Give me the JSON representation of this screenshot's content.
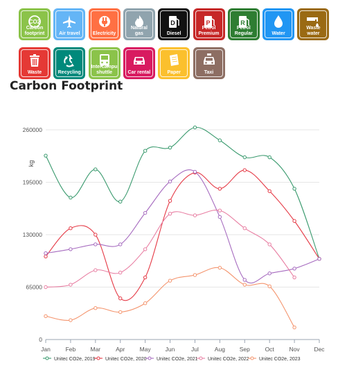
{
  "tiles": [
    {
      "label": "Carbon footprint",
      "icon": "co2-icon",
      "color": "#8bc34a"
    },
    {
      "label": "Air travel",
      "icon": "airplane-icon",
      "color": "#64b5f6"
    },
    {
      "label": "Electricity",
      "icon": "plug-icon",
      "color": "#ff7043"
    },
    {
      "label": "Natural gas",
      "icon": "flame-icon",
      "color": "#90a4ae"
    },
    {
      "label": "Diesel",
      "icon": "diesel-pump-icon",
      "color": "#111111"
    },
    {
      "label": "Petrol Premium",
      "icon": "premium-pump-icon",
      "color": "#c62828"
    },
    {
      "label": "Petrol Regular",
      "icon": "regular-pump-icon",
      "color": "#2e7d32"
    },
    {
      "label": "Water",
      "icon": "water-drop-icon",
      "color": "#2196f3"
    },
    {
      "label": "Waste water",
      "icon": "waste-water-icon",
      "color": "#9a6a13"
    },
    {
      "label": "Waste",
      "icon": "bin-icon",
      "color": "#e53935"
    },
    {
      "label": "Recycling",
      "icon": "recycle-icon",
      "color": "#00897b"
    },
    {
      "label": "Intercampus shuttle",
      "icon": "bus-icon",
      "color": "#8bc34a"
    },
    {
      "label": "Car rental",
      "icon": "car-icon",
      "color": "#d81b60"
    },
    {
      "label": "Paper",
      "icon": "paper-icon",
      "color": "#fbc02d"
    },
    {
      "label": "Taxi",
      "icon": "taxi-icon",
      "color": "#8d6e63"
    }
  ],
  "title": "Carbon Footprint",
  "chart_data": {
    "type": "line",
    "categories": [
      "Jan",
      "Feb",
      "Mar",
      "Apr",
      "May",
      "Jun",
      "Jul",
      "Aug",
      "Sep",
      "Oct",
      "Nov",
      "Dec"
    ],
    "ylabel": "kg",
    "ylim": [
      0,
      260000
    ],
    "yticks": [
      0,
      65000,
      130000,
      195000,
      260000
    ],
    "legend_position": "bottom",
    "series": [
      {
        "name": "Unitec CO2e, 2019",
        "color": "#3a9a6e",
        "values": [
          228000,
          176000,
          211000,
          171000,
          234000,
          238000,
          263000,
          247000,
          226000,
          226000,
          187000,
          100000
        ]
      },
      {
        "name": "Unitec CO2e, 2020",
        "color": "#e53945",
        "values": [
          103000,
          138000,
          130000,
          51000,
          77000,
          172000,
          207000,
          187000,
          210000,
          184000,
          147000,
          100000
        ]
      },
      {
        "name": "Unitec CO2e, 2021",
        "color": "#a66bbf",
        "values": [
          107000,
          112000,
          118000,
          118000,
          157000,
          196000,
          208000,
          152000,
          74000,
          82000,
          88000,
          100000
        ]
      },
      {
        "name": "Unitec CO2e, 2022",
        "color": "#e87ea2",
        "values": [
          65000,
          68000,
          86000,
          83000,
          112000,
          156000,
          154000,
          160000,
          138000,
          118000,
          77000,
          null
        ]
      },
      {
        "name": "Unitec CO2e, 2023",
        "color": "#f4946d",
        "values": [
          29000,
          24000,
          39000,
          34000,
          45000,
          73000,
          80000,
          89000,
          68000,
          66000,
          15000,
          null
        ]
      }
    ]
  }
}
